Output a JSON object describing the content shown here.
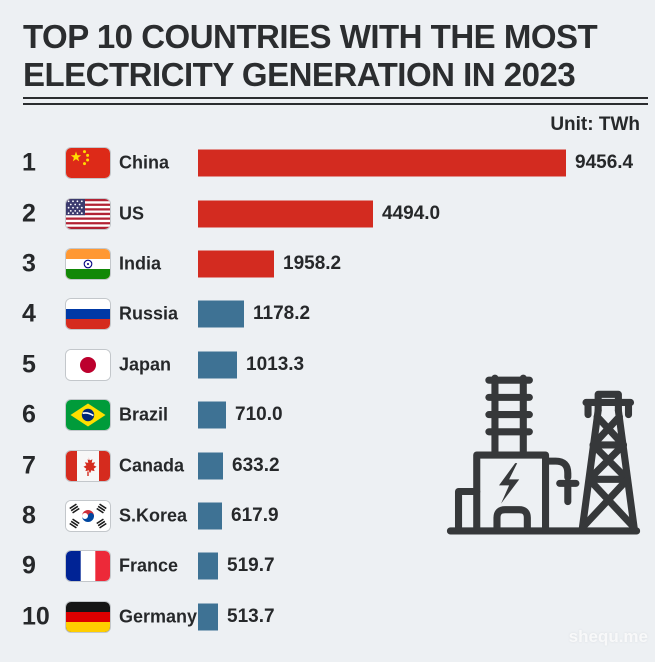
{
  "header": {
    "title_line1": "TOP 10 COUNTRIES WITH THE MOST",
    "title_line2": "ELECTRICITY GENERATION IN 2023",
    "unit_label": "Unit: TWh"
  },
  "watermark": "shequ.me",
  "colors": {
    "background": "#edf0f3",
    "ink": "#2b2d2f",
    "red_bar": "#d32b20",
    "blue_bar": "#3e7294",
    "icon": "#36383a"
  },
  "icons": {
    "decoration": "power-plant-icon",
    "flags": [
      "china-flag-icon",
      "us-flag-icon",
      "india-flag-icon",
      "russia-flag-icon",
      "japan-flag-icon",
      "brazil-flag-icon",
      "canada-flag-icon",
      "skorea-flag-icon",
      "france-flag-icon",
      "germany-flag-icon"
    ]
  },
  "countries": [
    {
      "rank": 1,
      "key": "china",
      "name": "China",
      "value": 9456.4,
      "value_label": "9456.4",
      "flag": "cn",
      "bar_color": "red"
    },
    {
      "rank": 2,
      "key": "us",
      "name": "US",
      "value": 4494.0,
      "value_label": "4494.0",
      "flag": "us",
      "bar_color": "red"
    },
    {
      "rank": 3,
      "key": "india",
      "name": "India",
      "value": 1958.2,
      "value_label": "1958.2",
      "flag": "in",
      "bar_color": "red"
    },
    {
      "rank": 4,
      "key": "russia",
      "name": "Russia",
      "value": 1178.2,
      "value_label": "1178.2",
      "flag": "ru",
      "bar_color": "blue"
    },
    {
      "rank": 5,
      "key": "japan",
      "name": "Japan",
      "value": 1013.3,
      "value_label": "1013.3",
      "flag": "jp",
      "bar_color": "blue"
    },
    {
      "rank": 6,
      "key": "brazil",
      "name": "Brazil",
      "value": 710.0,
      "value_label": "710.0",
      "flag": "br",
      "bar_color": "blue"
    },
    {
      "rank": 7,
      "key": "canada",
      "name": "Canada",
      "value": 633.2,
      "value_label": "633.2",
      "flag": "ca",
      "bar_color": "blue"
    },
    {
      "rank": 8,
      "key": "skorea",
      "name": "S.Korea",
      "value": 617.9,
      "value_label": "617.9",
      "flag": "kr",
      "bar_color": "blue"
    },
    {
      "rank": 9,
      "key": "france",
      "name": "France",
      "value": 519.7,
      "value_label": "519.7",
      "flag": "fr",
      "bar_color": "blue"
    },
    {
      "rank": 10,
      "key": "germany",
      "name": "Germany",
      "value": 513.7,
      "value_label": "513.7",
      "flag": "de",
      "bar_color": "blue"
    }
  ],
  "chart_data": {
    "type": "bar",
    "orientation": "horizontal",
    "title": "TOP 10 COUNTRIES WITH THE MOST ELECTRICITY GENERATION IN 2023",
    "unit": "TWh",
    "categories": [
      "China",
      "US",
      "India",
      "Russia",
      "Japan",
      "Brazil",
      "Canada",
      "S.Korea",
      "France",
      "Germany"
    ],
    "values": [
      9456.4,
      4494.0,
      1958.2,
      1178.2,
      1013.3,
      710.0,
      633.2,
      617.9,
      519.7,
      513.7
    ],
    "ranks": [
      1,
      2,
      3,
      4,
      5,
      6,
      7,
      8,
      9,
      10
    ],
    "bar_colors": [
      "red",
      "red",
      "red",
      "blue",
      "blue",
      "blue",
      "blue",
      "blue",
      "blue",
      "blue"
    ],
    "xlim": [
      0,
      9456.4
    ],
    "value_labels_shown": true,
    "axis_shown": false,
    "grid": "off",
    "legend": "none"
  }
}
